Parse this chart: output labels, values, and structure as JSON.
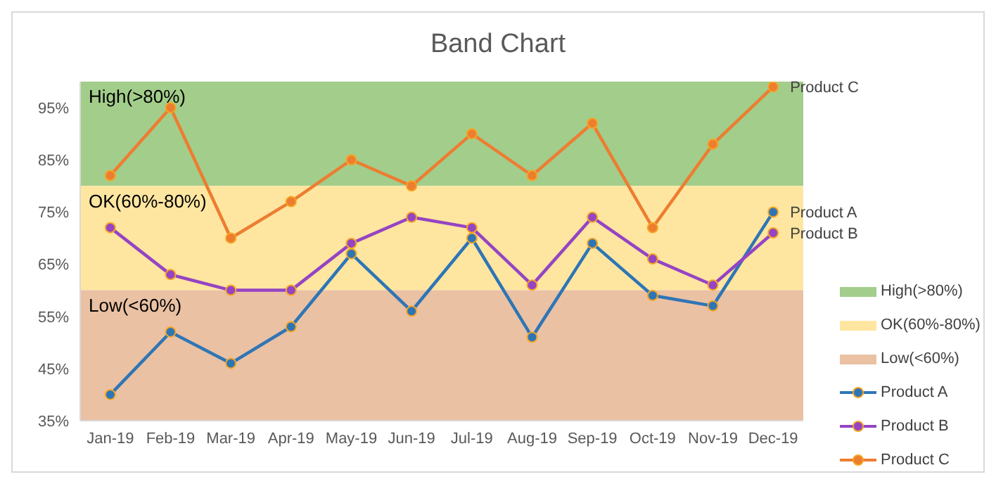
{
  "chart_data": {
    "type": "line",
    "title": "Band Chart",
    "categories": [
      "Jan-19",
      "Feb-19",
      "Mar-19",
      "Apr-19",
      "May-19",
      "Jun-19",
      "Jul-19",
      "Aug-19",
      "Sep-19",
      "Oct-19",
      "Nov-19",
      "Dec-19"
    ],
    "series": [
      {
        "name": "Product A",
        "color": "#2e75b6",
        "values": [
          40,
          52,
          46,
          53,
          67,
          56,
          70,
          51,
          69,
          59,
          57,
          75
        ]
      },
      {
        "name": "Product B",
        "color": "#9544c4",
        "values": [
          72,
          63,
          60,
          60,
          69,
          74,
          72,
          61,
          74,
          66,
          61,
          71
        ]
      },
      {
        "name": "Product C",
        "color": "#ed7d31",
        "values": [
          82,
          95,
          70,
          77,
          85,
          80,
          90,
          82,
          92,
          72,
          88,
          99
        ]
      }
    ],
    "ylim": [
      35,
      100
    ],
    "yticks": [
      {
        "value": 35,
        "label": "35%"
      },
      {
        "value": 45,
        "label": "45%"
      },
      {
        "value": 55,
        "label": "55%"
      },
      {
        "value": 65,
        "label": "65%"
      },
      {
        "value": 75,
        "label": "75%"
      },
      {
        "value": 85,
        "label": "85%"
      },
      {
        "value": 95,
        "label": "95%"
      }
    ],
    "bands": [
      {
        "axis": "y",
        "from": 80,
        "to": 100,
        "label": "High(>80%)",
        "color": "#a3cd8b"
      },
      {
        "axis": "y",
        "from": 60,
        "to": 80,
        "label": "OK(60%-80%)",
        "color": "#ffe6a0"
      },
      {
        "axis": "y",
        "from": 35,
        "to": 60,
        "label": "Low(<60%)",
        "color": "#eac1a3"
      }
    ],
    "marker": "circle",
    "grid": false,
    "legend": "right"
  }
}
